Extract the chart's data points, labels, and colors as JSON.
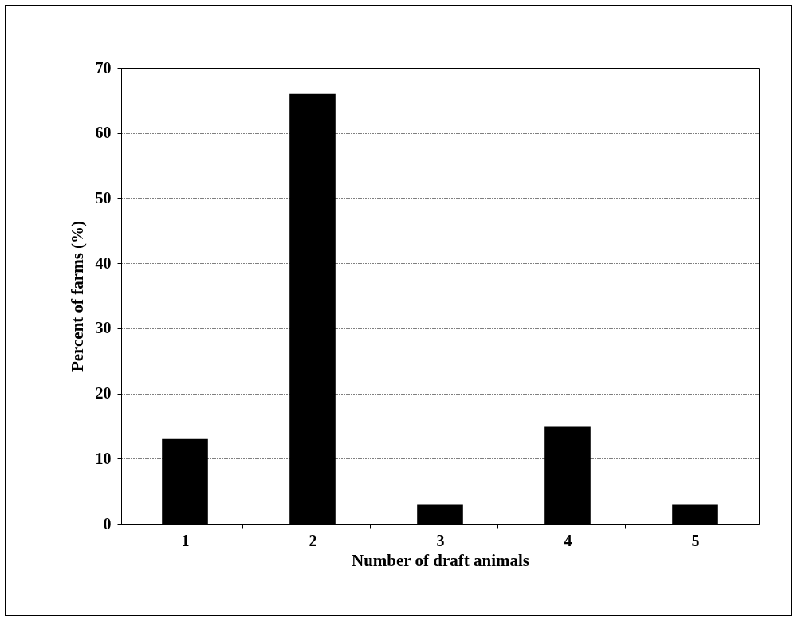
{
  "chart_data": {
    "type": "bar",
    "xlabel": "Number of draft animals",
    "ylabel": "Percent of farms (%)",
    "categories": [
      "1",
      "2",
      "3",
      "4",
      "5"
    ],
    "values": [
      13,
      66,
      3,
      15,
      3
    ],
    "color": "#000000",
    "ylim": [
      0,
      70
    ],
    "yticks": [
      0,
      10,
      20,
      30,
      40,
      50,
      60,
      70
    ],
    "grid": "y"
  }
}
